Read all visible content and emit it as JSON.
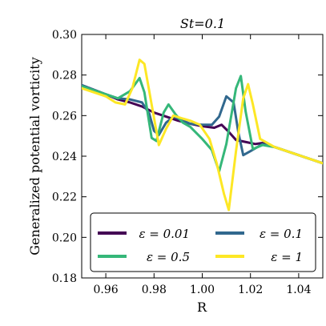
{
  "chart_data": {
    "type": "line",
    "title": "St=0.1",
    "xlabel": "R",
    "ylabel": "Generalized potential vorticity",
    "xlim": [
      0.95,
      1.05
    ],
    "ylim": [
      0.18,
      0.3
    ],
    "xticks": [
      0.96,
      0.98,
      1.0,
      1.02,
      1.04
    ],
    "xtick_labels": [
      "0.96",
      "0.98",
      "1.00",
      "1.02",
      "1.04"
    ],
    "yticks": [
      0.18,
      0.2,
      0.22,
      0.24,
      0.26,
      0.28,
      0.3
    ],
    "ytick_labels": [
      "0.18",
      "0.20",
      "0.22",
      "0.24",
      "0.26",
      "0.28",
      "0.30"
    ],
    "grid": false,
    "legend_placement": "lower-center",
    "series": [
      {
        "name": "ε = 0.01",
        "color": "#440154",
        "points": [
          [
            0.95,
            0.275
          ],
          [
            0.96,
            0.2705
          ],
          [
            0.965,
            0.268
          ],
          [
            0.97,
            0.2665
          ],
          [
            0.975,
            0.2645
          ],
          [
            0.98,
            0.2615
          ],
          [
            0.985,
            0.2595
          ],
          [
            0.99,
            0.2575
          ],
          [
            0.995,
            0.256
          ],
          [
            1.0,
            0.2548
          ],
          [
            1.005,
            0.254
          ],
          [
            1.008,
            0.2555
          ],
          [
            1.011,
            0.252
          ],
          [
            1.014,
            0.248
          ],
          [
            1.018,
            0.247
          ],
          [
            1.022,
            0.246
          ],
          [
            1.025,
            0.2465
          ],
          [
            1.03,
            0.2445
          ],
          [
            1.04,
            0.2405
          ],
          [
            1.05,
            0.2365
          ]
        ]
      },
      {
        "name": "ε = 0.1",
        "color": "#31688e",
        "points": [
          [
            0.95,
            0.275
          ],
          [
            0.96,
            0.2705
          ],
          [
            0.965,
            0.2685
          ],
          [
            0.97,
            0.268
          ],
          [
            0.975,
            0.2665
          ],
          [
            0.978,
            0.261
          ],
          [
            0.98,
            0.2525
          ],
          [
            0.982,
            0.2505
          ],
          [
            0.985,
            0.2565
          ],
          [
            0.988,
            0.2595
          ],
          [
            0.992,
            0.2575
          ],
          [
            0.995,
            0.256
          ],
          [
            1.0,
            0.2555
          ],
          [
            1.004,
            0.2555
          ],
          [
            1.007,
            0.2595
          ],
          [
            1.01,
            0.2695
          ],
          [
            1.013,
            0.2665
          ],
          [
            1.015,
            0.2515
          ],
          [
            1.017,
            0.2405
          ],
          [
            1.02,
            0.2425
          ],
          [
            1.025,
            0.246
          ],
          [
            1.03,
            0.2445
          ],
          [
            1.04,
            0.2405
          ],
          [
            1.05,
            0.2365
          ]
        ]
      },
      {
        "name": "ε = 0.5",
        "color": "#35b779",
        "points": [
          [
            0.95,
            0.2745
          ],
          [
            0.96,
            0.2705
          ],
          [
            0.965,
            0.2685
          ],
          [
            0.97,
            0.272
          ],
          [
            0.974,
            0.2785
          ],
          [
            0.976,
            0.2715
          ],
          [
            0.979,
            0.249
          ],
          [
            0.981,
            0.2475
          ],
          [
            0.984,
            0.2615
          ],
          [
            0.986,
            0.2655
          ],
          [
            0.989,
            0.2605
          ],
          [
            0.992,
            0.2565
          ],
          [
            0.995,
            0.2545
          ],
          [
            1.0,
            0.2485
          ],
          [
            1.004,
            0.243
          ],
          [
            1.007,
            0.2325
          ],
          [
            1.01,
            0.246
          ],
          [
            1.014,
            0.2735
          ],
          [
            1.016,
            0.2795
          ],
          [
            1.018,
            0.262
          ],
          [
            1.021,
            0.2435
          ],
          [
            1.025,
            0.2455
          ],
          [
            1.03,
            0.2445
          ],
          [
            1.04,
            0.2405
          ],
          [
            1.05,
            0.2365
          ]
        ]
      },
      {
        "name": "ε = 1",
        "color": "#fde725",
        "points": [
          [
            0.95,
            0.2735
          ],
          [
            0.96,
            0.2695
          ],
          [
            0.964,
            0.2665
          ],
          [
            0.968,
            0.2655
          ],
          [
            0.971,
            0.2735
          ],
          [
            0.974,
            0.2875
          ],
          [
            0.976,
            0.2855
          ],
          [
            0.979,
            0.2655
          ],
          [
            0.982,
            0.2455
          ],
          [
            0.985,
            0.2535
          ],
          [
            0.988,
            0.26
          ],
          [
            0.992,
            0.2585
          ],
          [
            0.995,
            0.2575
          ],
          [
            0.999,
            0.2555
          ],
          [
            1.003,
            0.2485
          ],
          [
            1.006,
            0.2365
          ],
          [
            1.009,
            0.2215
          ],
          [
            1.011,
            0.2135
          ],
          [
            1.014,
            0.2425
          ],
          [
            1.017,
            0.2685
          ],
          [
            1.019,
            0.2755
          ],
          [
            1.021,
            0.2655
          ],
          [
            1.024,
            0.2485
          ],
          [
            1.03,
            0.2445
          ],
          [
            1.04,
            0.2405
          ],
          [
            1.05,
            0.2365
          ]
        ]
      }
    ]
  }
}
